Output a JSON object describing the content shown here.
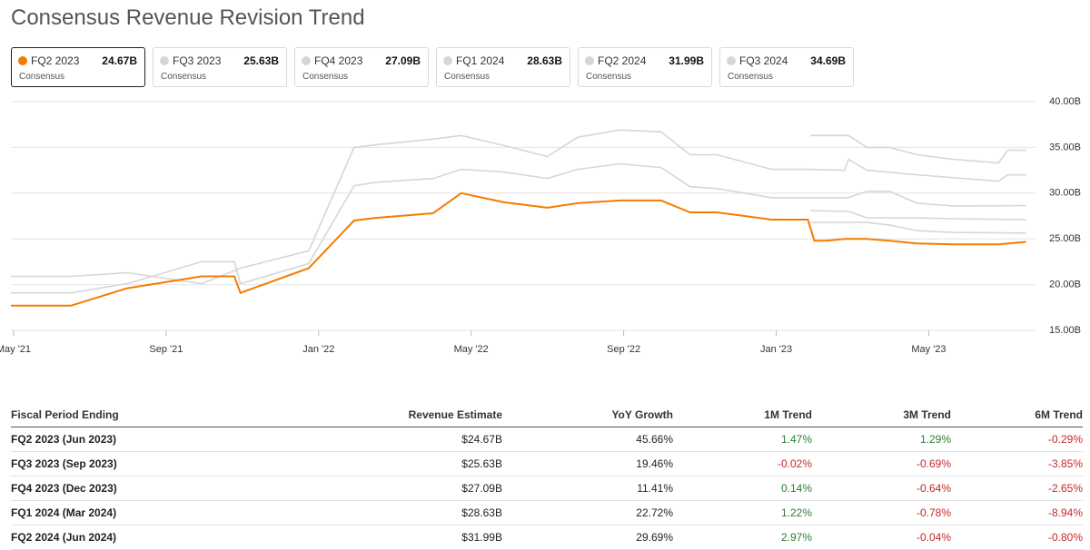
{
  "chart_data": {
    "type": "line",
    "title": "Consensus Revenue Revision Trend",
    "xlim": [
      -0.07,
      26.8
    ],
    "xticks": [
      {
        "value": 0,
        "label": "May '21"
      },
      {
        "value": 4,
        "label": "Sep '21"
      },
      {
        "value": 8,
        "label": "Jan '22"
      },
      {
        "value": 12,
        "label": "May '22"
      },
      {
        "value": 16,
        "label": "Sep '22"
      },
      {
        "value": 20,
        "label": "Jan '23"
      },
      {
        "value": 24,
        "label": "May '23"
      }
    ],
    "ylim": [
      15,
      40
    ],
    "yticks": [
      {
        "value": 15,
        "label": "15.00B"
      },
      {
        "value": 20,
        "label": "20.00B"
      },
      {
        "value": 25,
        "label": "25.00B"
      },
      {
        "value": 30,
        "label": "30.00B"
      },
      {
        "value": 35,
        "label": "35.00B"
      },
      {
        "value": 40,
        "label": "40.00B"
      }
    ],
    "grid": true,
    "series": [
      {
        "name": "FQ2 2023",
        "color": "#f57c00",
        "value_label": "24.67B",
        "caption": "Consensus",
        "x": [
          -0.07,
          1.5,
          2.98,
          4.93,
          5.79,
          5.95,
          7.74,
          8.93,
          9.52,
          11.0,
          11.74,
          12.86,
          14.0,
          14.79,
          15.9,
          16.98,
          17.74,
          18.45,
          19.88,
          20.83,
          21.0,
          21.31,
          21.79,
          22.38,
          22.98,
          23.69,
          24.64,
          25.83,
          26.55
        ],
        "values": [
          17.7,
          17.7,
          19.6,
          20.9,
          20.9,
          19.1,
          21.8,
          27.0,
          27.3,
          27.8,
          30.0,
          29.0,
          28.4,
          28.9,
          29.2,
          29.2,
          27.9,
          27.9,
          27.1,
          27.1,
          24.8,
          24.8,
          25.0,
          25.0,
          24.8,
          24.5,
          24.4,
          24.4,
          24.67
        ]
      },
      {
        "name": "FQ3 2023",
        "color": "#d6d6d6",
        "value_label": "25.63B",
        "caption": "Consensus",
        "x": [
          20.9,
          22.38,
          22.98,
          23.69,
          24.64,
          26.55
        ],
        "values": [
          26.8,
          26.8,
          26.5,
          25.9,
          25.7,
          25.63
        ]
      },
      {
        "name": "FQ4 2023",
        "color": "#d6d6d6",
        "value_label": "27.09B",
        "caption": "Consensus",
        "x": [
          20.9,
          21.9,
          22.38,
          22.98,
          23.69,
          24.64,
          26.55
        ],
        "values": [
          28.1,
          28.0,
          27.3,
          27.3,
          27.3,
          27.2,
          27.09
        ]
      },
      {
        "name": "FQ1 2024",
        "color": "#d6d6d6",
        "value_label": "28.63B",
        "caption": "Consensus",
        "x": [
          -0.07,
          1.5,
          2.98,
          4.93,
          5.79,
          5.95,
          7.74,
          8.93,
          9.52,
          11.0,
          11.74,
          12.86,
          14.0,
          14.79,
          15.9,
          16.98,
          17.74,
          18.45,
          19.88,
          20.83,
          21.0,
          21.9,
          22.38,
          22.98,
          23.69,
          24.64,
          26.55
        ],
        "values": [
          19.1,
          19.1,
          20.1,
          22.5,
          22.5,
          20.1,
          22.3,
          30.8,
          31.2,
          31.6,
          32.6,
          32.3,
          31.6,
          32.6,
          33.2,
          32.8,
          30.7,
          30.5,
          29.5,
          29.5,
          29.5,
          29.5,
          30.2,
          30.2,
          28.9,
          28.6,
          28.63
        ]
      },
      {
        "name": "FQ2 2024",
        "color": "#d6d6d6",
        "value_label": "31.99B",
        "caption": "Consensus",
        "x": [
          -0.07,
          1.5,
          2.98,
          4.93,
          5.95,
          7.74,
          8.93,
          9.52,
          11.0,
          11.74,
          12.86,
          14.0,
          14.79,
          15.9,
          16.98,
          17.74,
          18.45,
          19.88,
          20.83,
          21.79,
          21.9,
          22.38,
          23.69,
          25.83,
          26.07,
          26.55
        ],
        "values": [
          20.9,
          20.9,
          21.3,
          20.1,
          21.8,
          23.7,
          35.0,
          35.3,
          35.9,
          36.3,
          35.2,
          34.0,
          36.1,
          36.9,
          36.7,
          34.2,
          34.2,
          32.6,
          32.6,
          32.5,
          33.7,
          32.5,
          32.0,
          31.3,
          32.0,
          31.99
        ]
      },
      {
        "name": "FQ3 2024",
        "color": "#d6d6d6",
        "value_label": "34.69B",
        "caption": "Consensus",
        "x": [
          20.9,
          21.9,
          22.38,
          22.98,
          23.69,
          24.64,
          25.83,
          26.07,
          26.55
        ],
        "values": [
          36.3,
          36.3,
          35.0,
          35.0,
          34.2,
          33.7,
          33.3,
          34.7,
          34.69
        ]
      }
    ],
    "active_series": 0
  },
  "table": {
    "header": [
      "Fiscal Period Ending",
      "Revenue Estimate",
      "YoY Growth",
      "1M Trend",
      "3M Trend",
      "6M Trend"
    ],
    "rows": [
      [
        "FQ2 2023 (Jun 2023)",
        "$24.67B",
        "45.66%",
        "1.47%",
        "1.29%",
        "-0.29%"
      ],
      [
        "FQ3 2023 (Sep 2023)",
        "$25.63B",
        "19.46%",
        "-0.02%",
        "-0.69%",
        "-3.85%"
      ],
      [
        "FQ4 2023 (Dec 2023)",
        "$27.09B",
        "11.41%",
        "0.14%",
        "-0.64%",
        "-2.65%"
      ],
      [
        "FQ1 2024 (Mar 2024)",
        "$28.63B",
        "22.72%",
        "1.22%",
        "-0.78%",
        "-8.94%"
      ],
      [
        "FQ2 2024 (Jun 2024)",
        "$31.99B",
        "29.69%",
        "2.97%",
        "-0.04%",
        "-0.80%"
      ]
    ]
  }
}
